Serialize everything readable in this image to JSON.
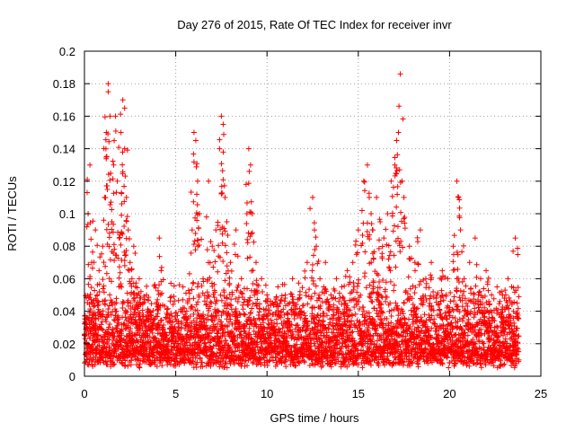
{
  "chart_data": {
    "type": "scatter",
    "title": "Day 276 of 2015, Rate Of TEC Index for receiver invr",
    "xlabel": "GPS time / hours",
    "ylabel": "ROTI / TECUs",
    "xlim": [
      0,
      25
    ],
    "ylim": [
      0,
      0.2
    ],
    "xticks": [
      0,
      5,
      10,
      15,
      20,
      25
    ],
    "yticks": [
      0,
      0.02,
      0.04,
      0.06,
      0.08,
      0.1,
      0.12,
      0.14,
      0.16,
      0.18,
      0.2
    ],
    "xtick_labels": [
      "0",
      "5",
      "10",
      "15",
      "20",
      "25"
    ],
    "ytick_labels": [
      "0",
      "0.02",
      "0.04",
      "0.06",
      "0.08",
      "0.1",
      "0.12",
      "0.14",
      "0.16",
      "0.18",
      "0.2"
    ],
    "grid": true,
    "marker": "+",
    "color": "#ff0000",
    "series": [
      {
        "name": "ROTI",
        "x": [
          0.1,
          0.2,
          0.3,
          0.3,
          0.4,
          0.5,
          0.6,
          0.7,
          0.8,
          1.0,
          1.1,
          1.2,
          1.3,
          1.3,
          1.4,
          1.5,
          1.6,
          1.7,
          1.8,
          1.9,
          2.0,
          2.1,
          2.2,
          2.2,
          2.3,
          2.4,
          2.5,
          2.6,
          2.7,
          2.8,
          2.9,
          3.0,
          3.2,
          3.4,
          3.6,
          3.8,
          4.0,
          4.1,
          4.2,
          4.3,
          4.5,
          4.8,
          5.0,
          5.3,
          5.6,
          5.9,
          6.0,
          6.1,
          6.2,
          6.3,
          6.5,
          6.8,
          7.0,
          7.2,
          7.4,
          7.5,
          7.6,
          7.7,
          7.8,
          8.0,
          8.3,
          8.6,
          8.9,
          9.0,
          9.1,
          9.2,
          9.4,
          9.7,
          10.0,
          10.3,
          10.6,
          11.0,
          11.4,
          11.8,
          12.2,
          12.5,
          12.6,
          12.7,
          12.9,
          13.2,
          13.5,
          13.8,
          14.1,
          14.4,
          14.7,
          15.0,
          15.3,
          15.5,
          15.6,
          15.7,
          15.8,
          16.0,
          16.2,
          16.4,
          16.6,
          16.8,
          17.0,
          17.1,
          17.2,
          17.3,
          17.4,
          17.5,
          17.8,
          18.1,
          18.4,
          18.7,
          19.0,
          19.3,
          19.6,
          19.9,
          20.2,
          20.4,
          20.5,
          20.6,
          20.8,
          21.1,
          21.4,
          21.7,
          22.0,
          22.3,
          22.6,
          22.9,
          23.2,
          23.4,
          23.6,
          23.7
        ],
        "y": [
          0.035,
          0.1,
          0.06,
          0.13,
          0.07,
          0.045,
          0.09,
          0.05,
          0.065,
          0.08,
          0.11,
          0.15,
          0.18,
          0.175,
          0.16,
          0.095,
          0.13,
          0.16,
          0.12,
          0.085,
          0.15,
          0.17,
          0.165,
          0.14,
          0.11,
          0.09,
          0.07,
          0.06,
          0.08,
          0.055,
          0.05,
          0.06,
          0.045,
          0.05,
          0.04,
          0.035,
          0.03,
          0.085,
          0.065,
          0.03,
          0.025,
          0.03,
          0.035,
          0.03,
          0.04,
          0.09,
          0.15,
          0.145,
          0.12,
          0.1,
          0.06,
          0.12,
          0.08,
          0.09,
          0.14,
          0.16,
          0.155,
          0.11,
          0.095,
          0.07,
          0.09,
          0.06,
          0.1,
          0.14,
          0.13,
          0.1,
          0.07,
          0.06,
          0.05,
          0.045,
          0.055,
          0.05,
          0.06,
          0.05,
          0.07,
          0.11,
          0.09,
          0.08,
          0.06,
          0.07,
          0.05,
          0.06,
          0.055,
          0.065,
          0.07,
          0.09,
          0.12,
          0.13,
          0.11,
          0.1,
          0.09,
          0.11,
          0.095,
          0.085,
          0.1,
          0.12,
          0.13,
          0.145,
          0.15,
          0.186,
          0.12,
          0.11,
          0.08,
          0.07,
          0.09,
          0.06,
          0.07,
          0.05,
          0.065,
          0.06,
          0.08,
          0.12,
          0.11,
          0.09,
          0.06,
          0.07,
          0.085,
          0.06,
          0.065,
          0.05,
          0.055,
          0.05,
          0.06,
          0.055,
          0.085,
          0.045
        ]
      }
    ],
    "dense_band": {
      "x_range": [
        0,
        23.8
      ],
      "y_floor_range": [
        0.005,
        0.015
      ],
      "y_ceiling_range": [
        0.03,
        0.06
      ]
    }
  }
}
